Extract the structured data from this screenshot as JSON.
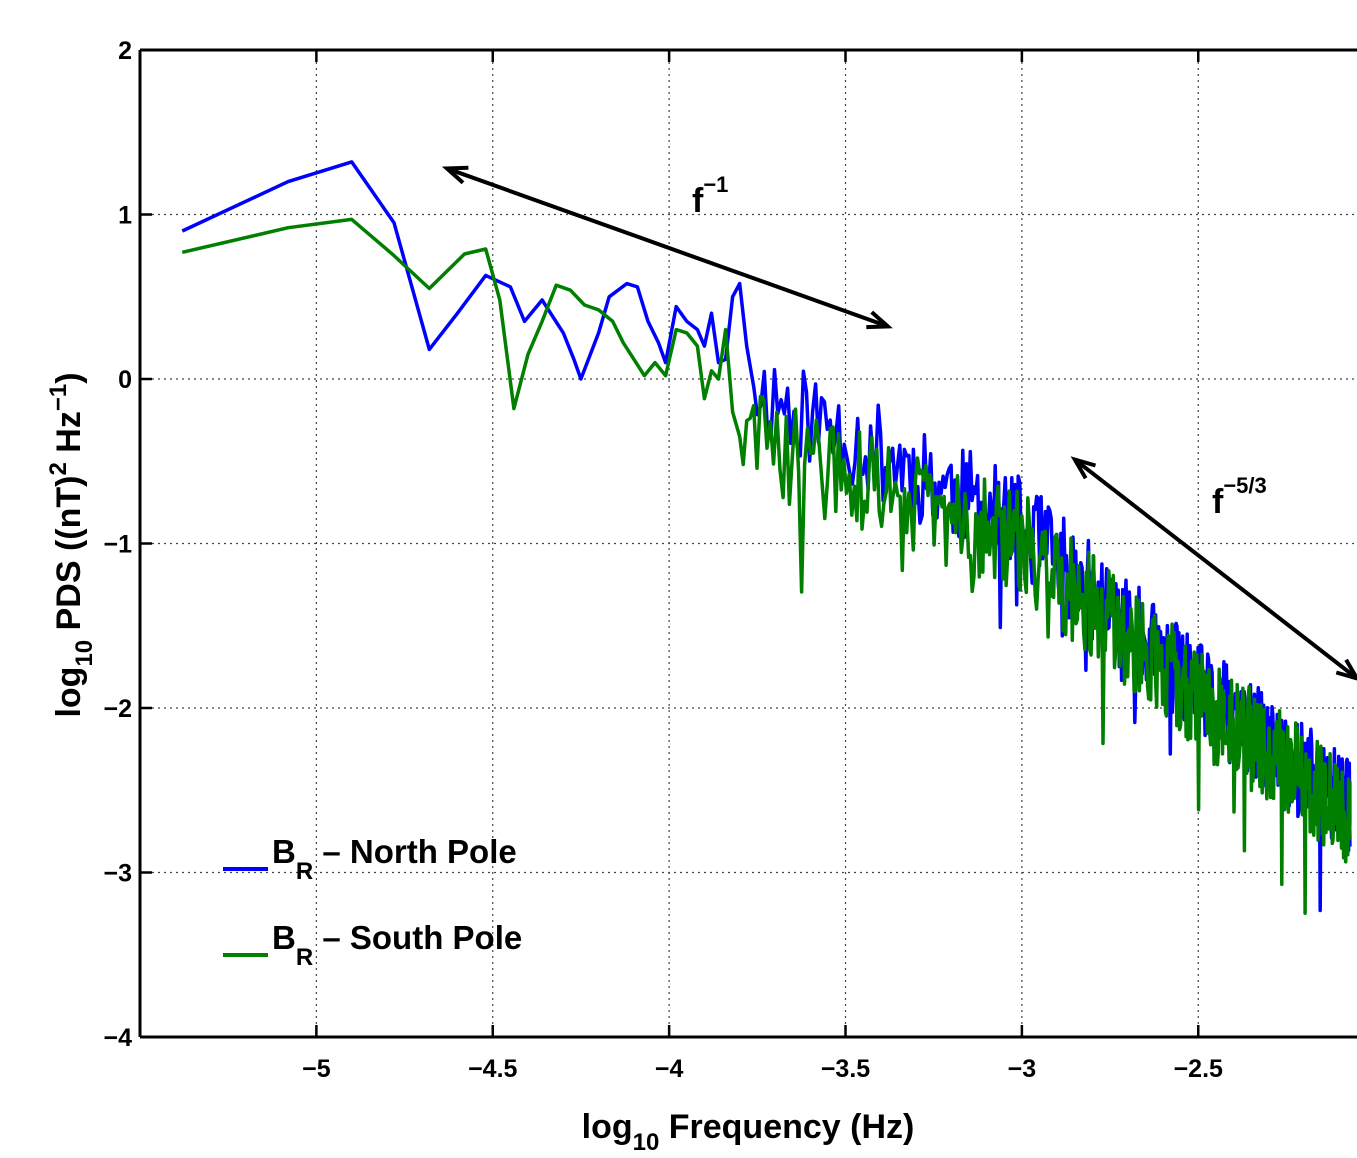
{
  "chart_data": {
    "type": "line",
    "title": "",
    "xlabel": {
      "prefix": "log",
      "sub": "10",
      "suffix": " Frequency (Hz)"
    },
    "ylabel": {
      "prefix": "log",
      "sub": "10",
      "main": " PDS ((nT)",
      "sup1": "2",
      "mid": " Hz",
      "sup2": "−1",
      "end": ")"
    },
    "xlim": [
      -5.5,
      -2.05
    ],
    "ylim": [
      -4,
      2
    ],
    "x_ticks": [
      -5,
      -4.5,
      -4,
      -3.5,
      -3,
      -2.5
    ],
    "x_tick_labels": [
      "−5",
      "−4.5",
      "−4",
      "−3.5",
      "−3",
      "−2.5"
    ],
    "y_ticks": [
      2,
      1,
      0,
      -1,
      -2,
      -3,
      -4
    ],
    "y_tick_labels": [
      "2",
      "1",
      "0",
      "−1",
      "−2",
      "−3",
      "−4"
    ],
    "grid": true,
    "legend_position": "bottom-left",
    "series": [
      {
        "label_main": "B",
        "label_sub": "R",
        "label_rest": " – North Pole",
        "color": "#0000ff",
        "points": [
          [
            -5.38,
            0.9
          ],
          [
            -5.08,
            1.2
          ],
          [
            -4.9,
            1.32
          ],
          [
            -4.78,
            0.95
          ],
          [
            -4.68,
            0.18
          ],
          [
            -4.6,
            0.4
          ],
          [
            -4.52,
            0.63
          ],
          [
            -4.45,
            0.56
          ],
          [
            -4.41,
            0.35
          ],
          [
            -4.36,
            0.48
          ],
          [
            -4.3,
            0.28
          ],
          [
            -4.27,
            0.12
          ],
          [
            -4.25,
            0.0
          ],
          [
            -4.2,
            0.28
          ],
          [
            -4.17,
            0.5
          ],
          [
            -4.12,
            0.58
          ],
          [
            -4.09,
            0.56
          ],
          [
            -4.06,
            0.35
          ],
          [
            -4.03,
            0.22
          ],
          [
            -4.01,
            0.1
          ],
          [
            -3.98,
            0.44
          ],
          [
            -3.95,
            0.35
          ],
          [
            -3.92,
            0.3
          ],
          [
            -3.9,
            0.2
          ],
          [
            -3.88,
            0.4
          ],
          [
            -3.86,
            0.1
          ],
          [
            -3.84,
            0.12
          ],
          [
            -3.82,
            0.5
          ],
          [
            -3.8,
            0.58
          ],
          [
            -3.78,
            0.2
          ],
          [
            -3.76,
            -0.05
          ]
        ],
        "noise_from": -3.76,
        "noise_to": -2.07,
        "trend": [
          [
            -3.76,
            -0.05
          ],
          [
            -3.0,
            -0.9
          ],
          [
            -2.5,
            -1.9
          ],
          [
            -2.07,
            -2.6
          ]
        ],
        "noise_amp": 0.3,
        "seed": 11
      },
      {
        "label_main": "B",
        "label_sub": "R",
        "label_rest": " – South Pole",
        "color": "#007f00",
        "points": [
          [
            -5.38,
            0.77
          ],
          [
            -5.08,
            0.92
          ],
          [
            -4.9,
            0.97
          ],
          [
            -4.78,
            0.75
          ],
          [
            -4.68,
            0.55
          ],
          [
            -4.58,
            0.76
          ],
          [
            -4.52,
            0.79
          ],
          [
            -4.48,
            0.48
          ],
          [
            -4.44,
            -0.18
          ],
          [
            -4.4,
            0.15
          ],
          [
            -4.36,
            0.35
          ],
          [
            -4.32,
            0.57
          ],
          [
            -4.28,
            0.54
          ],
          [
            -4.24,
            0.45
          ],
          [
            -4.2,
            0.42
          ],
          [
            -4.16,
            0.35
          ],
          [
            -4.13,
            0.22
          ],
          [
            -4.1,
            0.12
          ],
          [
            -4.07,
            0.02
          ],
          [
            -4.04,
            0.1
          ],
          [
            -4.01,
            0.02
          ],
          [
            -3.98,
            0.3
          ],
          [
            -3.95,
            0.28
          ],
          [
            -3.92,
            0.2
          ],
          [
            -3.9,
            -0.12
          ],
          [
            -3.88,
            0.05
          ],
          [
            -3.86,
            0.0
          ],
          [
            -3.84,
            0.3
          ],
          [
            -3.82,
            -0.2
          ],
          [
            -3.8,
            -0.35
          ]
        ],
        "noise_from": -3.8,
        "noise_to": -2.07,
        "trend": [
          [
            -3.8,
            -0.35
          ],
          [
            -3.0,
            -1.0
          ],
          [
            -2.5,
            -1.95
          ],
          [
            -2.07,
            -2.65
          ]
        ],
        "noise_amp": 0.32,
        "seed": 29
      }
    ],
    "annotations": [
      {
        "base": "f",
        "sup": "−1",
        "arrow_from": [
          -4.63,
          1.28
        ],
        "arrow_to": [
          -3.38,
          0.32
        ]
      },
      {
        "base": "f",
        "sup": "−5/3",
        "arrow_from": [
          -2.85,
          -0.49
        ],
        "arrow_to": [
          -2.05,
          -1.82
        ]
      }
    ]
  }
}
